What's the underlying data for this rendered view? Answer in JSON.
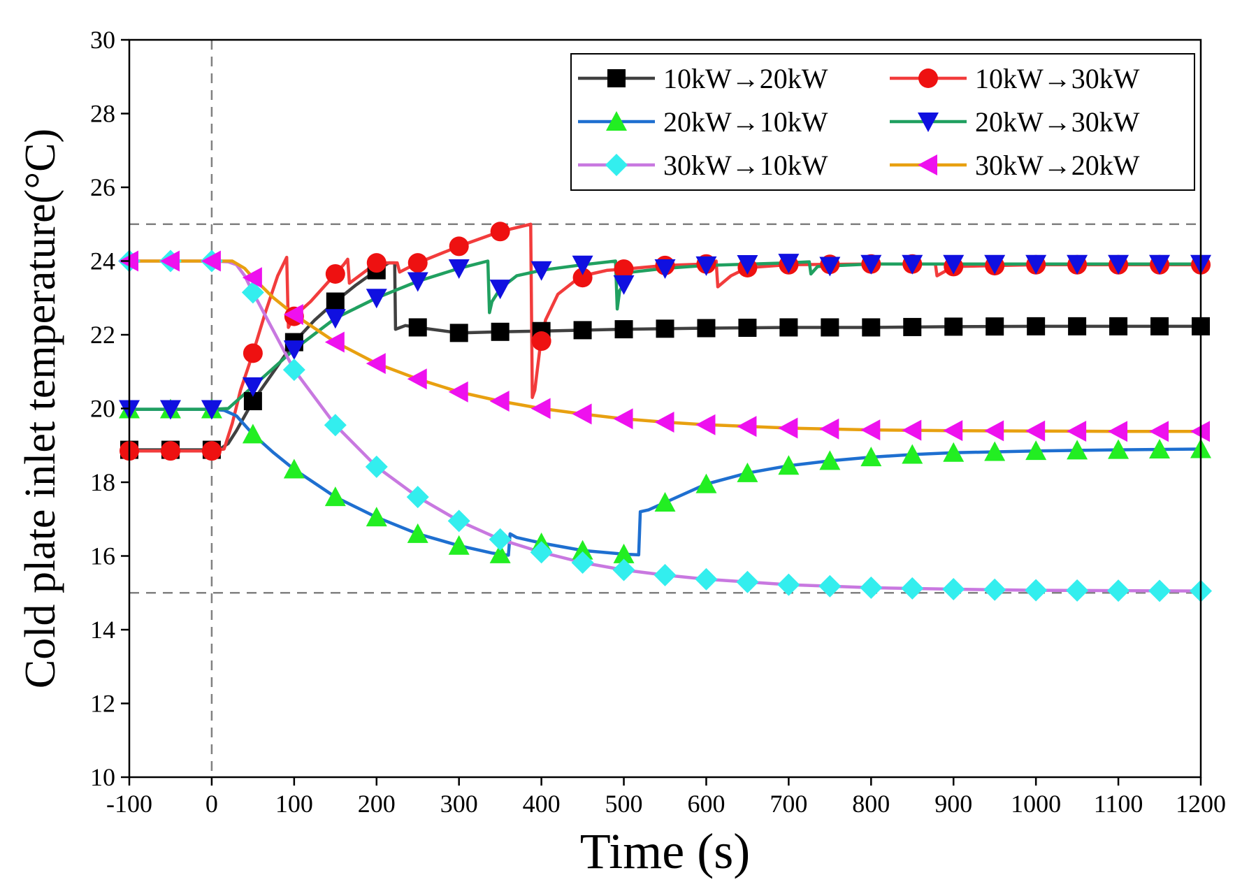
{
  "chart_data": {
    "type": "line",
    "title": "",
    "xlabel": "Time (s)",
    "ylabel": "Cold plate inlet temperature(°C)",
    "xlim": [
      -100,
      1200
    ],
    "ylim": [
      10,
      30
    ],
    "xticks": [
      -100,
      0,
      100,
      200,
      300,
      400,
      500,
      600,
      700,
      800,
      900,
      1000,
      1100,
      1200
    ],
    "yticks": [
      10,
      12,
      14,
      16,
      18,
      20,
      22,
      24,
      26,
      28,
      30
    ],
    "xtick_labels": [
      "-100",
      "0",
      "100",
      "200",
      "300",
      "400",
      "500",
      "600",
      "700",
      "800",
      "900",
      "1000",
      "1100",
      "1200"
    ],
    "ytick_labels": [
      "10",
      "12",
      "14",
      "16",
      "18",
      "20",
      "22",
      "24",
      "26",
      "28",
      "30"
    ],
    "reference_lines": {
      "horizontal": [
        25,
        15
      ],
      "vertical": [
        0
      ]
    },
    "legend_position": "top-right",
    "grid": false,
    "series": [
      {
        "name": "10kW→20kW",
        "color": "#404040",
        "marker_color": "#000000",
        "marker": "square",
        "x": [
          -100,
          0,
          10,
          20,
          30,
          50,
          75,
          100,
          125,
          150,
          175,
          200,
          215,
          222,
          223,
          235,
          250,
          300,
          350,
          400,
          500,
          600,
          700,
          800,
          900,
          1000,
          1200
        ],
        "y": [
          18.88,
          18.88,
          18.9,
          19.05,
          19.4,
          20.2,
          21.0,
          21.8,
          22.4,
          22.9,
          23.35,
          23.75,
          23.95,
          23.95,
          22.15,
          22.25,
          22.2,
          22.05,
          22.08,
          22.1,
          22.15,
          22.18,
          22.2,
          22.2,
          22.22,
          22.23,
          22.23
        ],
        "marker_x": [
          -100,
          -50,
          0,
          50,
          100,
          150,
          200,
          250,
          300,
          350,
          400,
          450,
          500,
          550,
          600,
          650,
          700,
          750,
          800,
          850,
          900,
          950,
          1000,
          1050,
          1100,
          1150,
          1200
        ]
      },
      {
        "name": "10kW→30kW",
        "color": "#f23c3c",
        "marker_color": "#ee1111",
        "marker": "circle",
        "x": [
          -100,
          0,
          15,
          25,
          35,
          50,
          65,
          80,
          91,
          93,
          100,
          120,
          140,
          160,
          165,
          167,
          200,
          225,
          228,
          250,
          300,
          350,
          387,
          389,
          392,
          398,
          405,
          420,
          440,
          460,
          480,
          500,
          550,
          600,
          612,
          614,
          630,
          650,
          700,
          800,
          878,
          880,
          900,
          1000,
          1200
        ],
        "y": [
          18.85,
          18.85,
          18.9,
          19.6,
          20.5,
          21.5,
          22.6,
          23.6,
          24.1,
          22.2,
          22.5,
          22.9,
          23.4,
          23.9,
          24.05,
          23.4,
          23.95,
          23.95,
          23.7,
          23.95,
          24.4,
          24.8,
          25.0,
          20.3,
          20.5,
          21.6,
          22.4,
          23.1,
          23.45,
          23.65,
          23.75,
          23.78,
          23.88,
          23.92,
          24.0,
          23.3,
          23.6,
          23.82,
          23.9,
          23.92,
          23.92,
          23.6,
          23.85,
          23.9,
          23.9
        ],
        "marker_x": [
          -100,
          -50,
          0,
          50,
          100,
          150,
          200,
          250,
          300,
          350,
          400,
          450,
          500,
          550,
          600,
          650,
          700,
          750,
          800,
          850,
          900,
          950,
          1000,
          1050,
          1100,
          1150,
          1200
        ]
      },
      {
        "name": "20kW→10kW",
        "color": "#1e6fd0",
        "marker_color": "#22ee22",
        "marker": "triangle-up",
        "x": [
          -100,
          0,
          15,
          30,
          50,
          75,
          100,
          150,
          200,
          250,
          300,
          340,
          360,
          362,
          370,
          400,
          450,
          500,
          518,
          520,
          530,
          550,
          600,
          650,
          700,
          750,
          800,
          850,
          900,
          1000,
          1100,
          1200
        ],
        "y": [
          19.98,
          19.98,
          19.95,
          19.8,
          19.3,
          18.8,
          18.35,
          17.6,
          17.05,
          16.6,
          16.28,
          16.08,
          16.02,
          16.6,
          16.5,
          16.35,
          16.15,
          16.05,
          16.03,
          17.2,
          17.25,
          17.45,
          17.95,
          18.25,
          18.45,
          18.58,
          18.68,
          18.75,
          18.8,
          18.85,
          18.88,
          18.9
        ],
        "marker_x": [
          -100,
          -50,
          0,
          50,
          100,
          150,
          200,
          250,
          300,
          350,
          400,
          450,
          500,
          550,
          600,
          650,
          700,
          750,
          800,
          850,
          900,
          950,
          1000,
          1050,
          1100,
          1150,
          1200
        ]
      },
      {
        "name": "20kW→30kW",
        "color": "#20a060",
        "marker_color": "#1010e0",
        "marker": "triangle-down",
        "x": [
          -100,
          0,
          20,
          50,
          100,
          150,
          200,
          250,
          300,
          335,
          337,
          340,
          350,
          370,
          400,
          450,
          490,
          492,
          495,
          510,
          550,
          600,
          700,
          725,
          727,
          735,
          800,
          1000,
          1200
        ],
        "y": [
          19.98,
          19.98,
          20.0,
          20.6,
          21.6,
          22.45,
          23.0,
          23.45,
          23.8,
          24.0,
          22.6,
          22.9,
          23.25,
          23.6,
          23.75,
          23.9,
          24.0,
          22.7,
          23.2,
          23.7,
          23.8,
          23.88,
          23.95,
          23.98,
          23.65,
          23.85,
          23.92,
          23.92,
          23.92
        ],
        "marker_x": [
          -100,
          -50,
          0,
          50,
          100,
          150,
          200,
          250,
          300,
          350,
          400,
          450,
          500,
          550,
          600,
          650,
          700,
          750,
          800,
          850,
          900,
          950,
          1000,
          1050,
          1100,
          1150,
          1200
        ]
      },
      {
        "name": "30kW→10kW",
        "color": "#c878e0",
        "marker_color": "#33eeee",
        "marker": "diamond",
        "x": [
          -100,
          0,
          20,
          30,
          40,
          50,
          75,
          100,
          150,
          200,
          250,
          300,
          350,
          400,
          450,
          500,
          550,
          600,
          700,
          800,
          900,
          1000,
          1100,
          1200
        ],
        "y": [
          24.0,
          24.0,
          23.98,
          23.9,
          23.6,
          23.15,
          22.1,
          21.05,
          19.55,
          18.42,
          17.6,
          16.95,
          16.45,
          16.1,
          15.82,
          15.62,
          15.48,
          15.37,
          15.22,
          15.14,
          15.1,
          15.07,
          15.06,
          15.05
        ],
        "marker_x": [
          -100,
          -50,
          0,
          50,
          100,
          150,
          200,
          250,
          300,
          350,
          400,
          450,
          500,
          550,
          600,
          650,
          700,
          750,
          800,
          850,
          900,
          950,
          1000,
          1050,
          1100,
          1150,
          1200
        ]
      },
      {
        "name": "30kW→20kW",
        "color": "#e8a010",
        "marker_color": "#ee11ee",
        "marker": "triangle-left",
        "x": [
          -100,
          0,
          25,
          40,
          50,
          75,
          100,
          150,
          200,
          250,
          300,
          350,
          400,
          450,
          500,
          550,
          600,
          700,
          800,
          900,
          1000,
          1100,
          1200
        ],
        "y": [
          24.0,
          24.0,
          24.0,
          23.8,
          23.55,
          23.0,
          22.55,
          21.8,
          21.22,
          20.8,
          20.45,
          20.2,
          20.0,
          19.85,
          19.72,
          19.63,
          19.56,
          19.47,
          19.42,
          19.4,
          19.39,
          19.38,
          19.38
        ],
        "marker_x": [
          -100,
          -50,
          0,
          50,
          100,
          150,
          200,
          250,
          300,
          350,
          400,
          450,
          500,
          550,
          600,
          650,
          700,
          750,
          800,
          850,
          900,
          950,
          1000,
          1050,
          1100,
          1150,
          1200
        ]
      }
    ]
  }
}
